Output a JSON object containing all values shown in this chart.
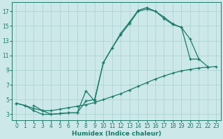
{
  "bg_color": "#cce8e8",
  "grid_color": "#aad0d0",
  "line_color": "#1a7a6a",
  "line_width": 0.9,
  "marker": "+",
  "marker_size": 3.5,
  "marker_edge_width": 0.9,
  "xlabel": "Humidex (Indice chaleur)",
  "xlabel_fontsize": 6.5,
  "tick_fontsize": 5.5,
  "xlim": [
    -0.5,
    23.5
  ],
  "ylim": [
    2.2,
    18.2
  ],
  "yticks": [
    3,
    5,
    7,
    9,
    11,
    13,
    15,
    17
  ],
  "xticks": [
    0,
    1,
    2,
    3,
    4,
    5,
    6,
    7,
    8,
    9,
    10,
    11,
    12,
    13,
    14,
    15,
    16,
    17,
    18,
    19,
    20,
    21,
    22,
    23
  ],
  "series1_x": [
    0,
    1,
    2,
    3,
    4,
    5,
    6,
    7,
    8,
    9,
    10,
    11,
    12,
    13,
    14,
    15,
    16,
    17,
    18,
    19,
    20,
    21,
    22
  ],
  "series1_y": [
    4.5,
    4.2,
    3.5,
    3.0,
    3.0,
    3.1,
    3.2,
    3.2,
    6.2,
    4.8,
    10.0,
    12.0,
    14.0,
    15.5,
    17.1,
    17.5,
    17.0,
    16.2,
    15.3,
    14.8,
    10.5,
    10.5,
    9.5
  ],
  "series2_x": [
    2,
    3,
    4,
    5,
    6,
    7,
    8,
    9,
    10,
    11,
    12,
    13,
    14,
    15,
    16,
    17,
    18,
    19,
    20,
    21
  ],
  "series2_y": [
    4.2,
    3.5,
    3.0,
    3.1,
    3.2,
    3.2,
    4.8,
    5.0,
    10.0,
    12.0,
    13.8,
    15.3,
    17.0,
    17.3,
    17.0,
    16.0,
    15.2,
    14.8,
    13.2,
    10.5
  ],
  "series3_x": [
    0,
    1,
    2,
    3,
    4,
    5,
    6,
    7,
    8,
    9,
    10,
    11,
    12,
    13,
    14,
    15,
    16,
    17,
    18,
    19,
    20,
    21,
    22,
    23
  ],
  "series3_y": [
    4.5,
    4.2,
    3.8,
    3.5,
    3.5,
    3.7,
    3.9,
    4.1,
    4.3,
    4.6,
    5.0,
    5.4,
    5.8,
    6.3,
    6.8,
    7.3,
    7.8,
    8.2,
    8.6,
    8.9,
    9.1,
    9.3,
    9.4,
    9.5
  ]
}
